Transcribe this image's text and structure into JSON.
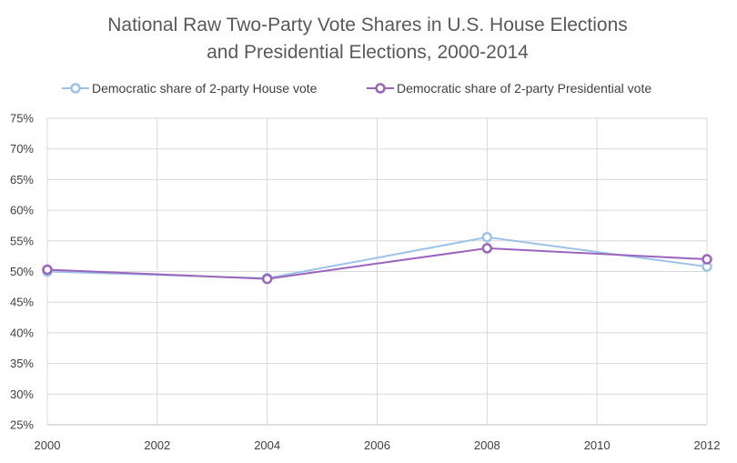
{
  "chart_data": {
    "type": "line",
    "title_lines": [
      "National Raw Two-Party Vote Shares in U.S. House Elections",
      "and Presidential Elections, 2000-2014"
    ],
    "xlabel": "",
    "ylabel": "",
    "x": [
      2000,
      2004,
      2008,
      2012
    ],
    "x_ticks": [
      "2000",
      "2002",
      "2004",
      "2006",
      "2008",
      "2010",
      "2012"
    ],
    "x_tick_values": [
      2000,
      2002,
      2004,
      2006,
      2008,
      2010,
      2012
    ],
    "xlim": [
      2000,
      2012
    ],
    "y_ticks": [
      "25%",
      "30%",
      "35%",
      "40%",
      "45%",
      "50%",
      "55%",
      "60%",
      "65%",
      "70%",
      "75%"
    ],
    "y_tick_values": [
      25,
      30,
      35,
      40,
      45,
      50,
      55,
      60,
      65,
      70,
      75
    ],
    "ylim": [
      25,
      75
    ],
    "grid": true,
    "legend_position": "top",
    "series": [
      {
        "name": "Democratic share of 2-party House vote",
        "color": "#9dc3e6",
        "values": [
          50.0,
          48.9,
          55.6,
          50.8
        ]
      },
      {
        "name": "Democratic share of 2-party Presidential vote",
        "color": "#9966bb",
        "values": [
          50.3,
          48.8,
          53.8,
          52.0
        ]
      }
    ]
  }
}
